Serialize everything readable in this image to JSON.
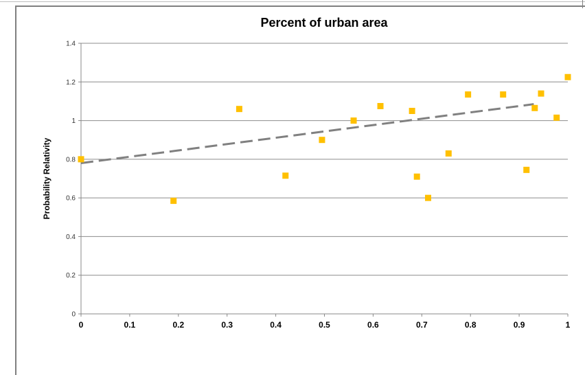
{
  "chart_data": {
    "type": "scatter",
    "title": "Percent of urban area",
    "xlabel": "",
    "ylabel": "Probability Relativity",
    "xlim": [
      0,
      1
    ],
    "ylim": [
      0,
      1.4
    ],
    "x_ticks": [
      "0",
      "0.1",
      "0.2",
      "0.3",
      "0.4",
      "0.5",
      "0.6",
      "0.7",
      "0.8",
      "0.9",
      "1"
    ],
    "y_ticks": [
      "0",
      "0.2",
      "0.4",
      "0.6",
      "0.8",
      "1",
      "1.2",
      "1.4"
    ],
    "grid": "horizontal",
    "legend": "none",
    "series": [
      {
        "marker": "square",
        "color": "#ffc000",
        "points": [
          {
            "x": 0.0,
            "y": 0.8
          },
          {
            "x": 0.19,
            "y": 0.585
          },
          {
            "x": 0.325,
            "y": 1.06
          },
          {
            "x": 0.42,
            "y": 0.715
          },
          {
            "x": 0.495,
            "y": 0.9
          },
          {
            "x": 0.56,
            "y": 1.0
          },
          {
            "x": 0.615,
            "y": 1.075
          },
          {
            "x": 0.68,
            "y": 1.05
          },
          {
            "x": 0.69,
            "y": 0.71
          },
          {
            "x": 0.713,
            "y": 0.6
          },
          {
            "x": 0.755,
            "y": 0.83
          },
          {
            "x": 0.795,
            "y": 1.135
          },
          {
            "x": 0.867,
            "y": 1.135
          },
          {
            "x": 0.915,
            "y": 0.745
          },
          {
            "x": 0.932,
            "y": 1.065
          },
          {
            "x": 0.945,
            "y": 1.14
          },
          {
            "x": 0.977,
            "y": 1.015
          },
          {
            "x": 1.0,
            "y": 1.225
          }
        ]
      }
    ],
    "trendline": {
      "style": "dashed",
      "color": "#808080",
      "x": [
        0,
        0.93
      ],
      "y": [
        0.78,
        1.085
      ]
    }
  }
}
